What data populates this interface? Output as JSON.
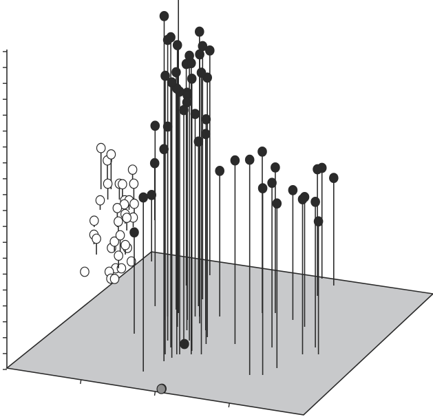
{
  "chart_data": {
    "type": "scatter",
    "projection": "3d",
    "title": "",
    "xlabel": "",
    "ylabel": "",
    "zlabel": "",
    "grid": false,
    "legend": "none",
    "colors": {
      "floor": "#c8c9cb",
      "ink": "#2a2a2a",
      "dark": "#2b2b2b",
      "light": "#ffffff",
      "gray": "#8e8e8e"
    },
    "series": [
      {
        "marker": "dark",
        "points": [
          {
            "x": 0.89,
            "y": 0.24,
            "z": 0.96
          },
          {
            "x": 0.98,
            "y": 0.26,
            "z": 1.08
          },
          {
            "x": 0.94,
            "y": 0.18,
            "z": 0.95
          },
          {
            "x": 0.99,
            "y": 0.22,
            "z": 0.89
          },
          {
            "x": 0.97,
            "y": 0.16,
            "z": 0.98
          },
          {
            "x": 0.99,
            "y": 0.13,
            "z": 0.87
          },
          {
            "x": 0.94,
            "y": 0.14,
            "z": 0.88
          },
          {
            "x": 1.02,
            "y": 0.14,
            "z": 0.84
          },
          {
            "x": 1.04,
            "y": 0.14,
            "z": 0.83
          },
          {
            "x": 0.96,
            "y": 0.27,
            "z": 0.75
          },
          {
            "x": 1.0,
            "y": 0.34,
            "z": 0.7
          },
          {
            "x": 1.09,
            "y": 0.18,
            "z": 0.9
          },
          {
            "x": 1.12,
            "y": 0.14,
            "z": 0.92
          },
          {
            "x": 1.14,
            "y": 0.23,
            "z": 0.85
          },
          {
            "x": 1.12,
            "y": 0.15,
            "z": 0.86
          },
          {
            "x": 1.13,
            "y": 0.25,
            "z": 0.9
          },
          {
            "x": 1.19,
            "y": 0.14,
            "z": 0.89
          },
          {
            "x": 1.13,
            "y": 0.3,
            "z": 0.8
          },
          {
            "x": 1.05,
            "y": 0.24,
            "z": 0.71
          },
          {
            "x": 1.06,
            "y": 0.16,
            "z": 0.75
          },
          {
            "x": 1.15,
            "y": 0.37,
            "z": 0.71
          },
          {
            "x": 1.21,
            "y": 0.19,
            "z": 0.82
          },
          {
            "x": 1.21,
            "y": 0.17,
            "z": 0.71
          },
          {
            "x": 1.19,
            "y": 0.21,
            "z": 0.62
          },
          {
            "x": 1.1,
            "y": 0.25,
            "z": 0.64
          },
          {
            "x": 0.91,
            "y": 0.25,
            "z": 0.6
          },
          {
            "x": 0.94,
            "y": 0.12,
            "z": 0.67
          },
          {
            "x": 0.81,
            "y": 0.28,
            "z": 0.57
          },
          {
            "x": 0.81,
            "y": 0.09,
            "z": 0.55
          },
          {
            "x": 1.01,
            "y": 0.33,
            "z": 0.62
          },
          {
            "x": 1.06,
            "y": 0.21,
            "z": 0.72
          },
          {
            "x": 1.11,
            "y": 0.28,
            "z": 0.52
          },
          {
            "x": 1.27,
            "y": 0.25,
            "z": 0.46
          },
          {
            "x": 1.41,
            "y": 0.17,
            "z": 0.58
          },
          {
            "x": 1.55,
            "y": 0.08,
            "z": 0.68
          },
          {
            "x": 1.64,
            "y": 0.08,
            "z": 0.59
          },
          {
            "x": 1.56,
            "y": 0.26,
            "z": 0.51
          },
          {
            "x": 1.67,
            "y": 0.16,
            "z": 0.52
          },
          {
            "x": 1.73,
            "y": 0.1,
            "z": 0.52
          },
          {
            "x": 1.78,
            "y": 0.24,
            "z": 0.41
          },
          {
            "x": 1.65,
            "y": 0.26,
            "z": 0.46
          },
          {
            "x": 1.89,
            "y": 0.14,
            "z": 0.49
          },
          {
            "x": 1.87,
            "y": 0.22,
            "z": 0.41
          },
          {
            "x": 1.97,
            "y": 0.16,
            "z": 0.46
          },
          {
            "x": 1.92,
            "y": 0.31,
            "z": 0.4
          },
          {
            "x": 1.93,
            "y": 0.36,
            "z": 0.35
          },
          {
            "x": 2.0,
            "y": 0.14,
            "z": 0.42
          },
          {
            "x": 2.02,
            "y": 0.34,
            "z": 0.34
          },
          {
            "x": 0.7,
            "y": 0.2,
            "z": 0.32
          },
          {
            "x": 0.73,
            "y": 0.41,
            "z": 0.21
          },
          {
            "x": 0.7,
            "y": 0.53,
            "z": 0.18
          },
          {
            "x": 0.96,
            "y": 0.04,
            "z": 0.0
          },
          {
            "x": 1.06,
            "y": 0.17,
            "z": 0.0
          }
        ]
      },
      {
        "marker": "light",
        "points": [
          {
            "x": 0.29,
            "y": 0.62,
            "z": 0.13
          },
          {
            "x": 0.33,
            "y": 0.63,
            "z": 0.08
          },
          {
            "x": 0.35,
            "y": 0.59,
            "z": 0.05
          },
          {
            "x": 0.31,
            "y": 0.46,
            "z": 0.03
          },
          {
            "x": 0.34,
            "y": 0.43,
            "z": 0.05
          },
          {
            "x": 0.43,
            "y": 0.59,
            "z": 0.05
          },
          {
            "x": 0.45,
            "y": 0.51,
            "z": 0.06
          },
          {
            "x": 0.46,
            "y": 0.57,
            "z": 0.07
          },
          {
            "x": 0.49,
            "y": 0.53,
            "z": 0.05
          },
          {
            "x": 0.5,
            "y": 0.64,
            "z": 0.04
          },
          {
            "x": 0.53,
            "y": 0.59,
            "z": 0.05
          },
          {
            "x": 0.47,
            "y": 0.48,
            "z": 0.05
          },
          {
            "x": 0.5,
            "y": 0.44,
            "z": 0.05
          },
          {
            "x": 0.52,
            "y": 0.5,
            "z": 0.04
          },
          {
            "x": 0.5,
            "y": 0.52,
            "z": 0.03
          },
          {
            "x": 0.46,
            "y": 0.44,
            "z": 0.03
          },
          {
            "x": 0.48,
            "y": 0.56,
            "z": 0.03
          },
          {
            "x": 0.51,
            "y": 0.39,
            "z": 0.04
          },
          {
            "x": 0.54,
            "y": 0.43,
            "z": 0.03
          },
          {
            "x": 0.51,
            "y": 0.56,
            "z": 0.03
          },
          {
            "x": 0.55,
            "y": 0.55,
            "z": 0.03
          },
          {
            "x": 0.56,
            "y": 0.51,
            "z": 0.03
          },
          {
            "x": 0.44,
            "y": 0.44,
            "z": 0.01
          },
          {
            "x": 0.49,
            "y": 0.39,
            "z": 0.0
          },
          {
            "x": 0.45,
            "y": 0.38,
            "z": 0.0
          },
          {
            "x": 0.47,
            "y": 0.36,
            "z": 0.0
          },
          {
            "x": 0.5,
            "y": 0.35,
            "z": 0.01
          },
          {
            "x": 0.53,
            "y": 0.39,
            "z": 0.0
          },
          {
            "x": 0.55,
            "y": 0.44,
            "z": 0.01
          },
          {
            "x": 0.31,
            "y": 0.56,
            "z": 0.03
          },
          {
            "x": 0.29,
            "y": 0.51,
            "z": 0.02
          },
          {
            "x": 0.28,
            "y": 0.38,
            "z": 0.0
          },
          {
            "x": 0.36,
            "y": 0.62,
            "z": 0.11
          },
          {
            "x": 0.59,
            "y": 0.41,
            "z": 0.0
          }
        ]
      },
      {
        "marker": "gray",
        "points": [
          {
            "x": 0.96,
            "y": 0.03,
            "z": 0.01
          }
        ]
      }
    ]
  }
}
